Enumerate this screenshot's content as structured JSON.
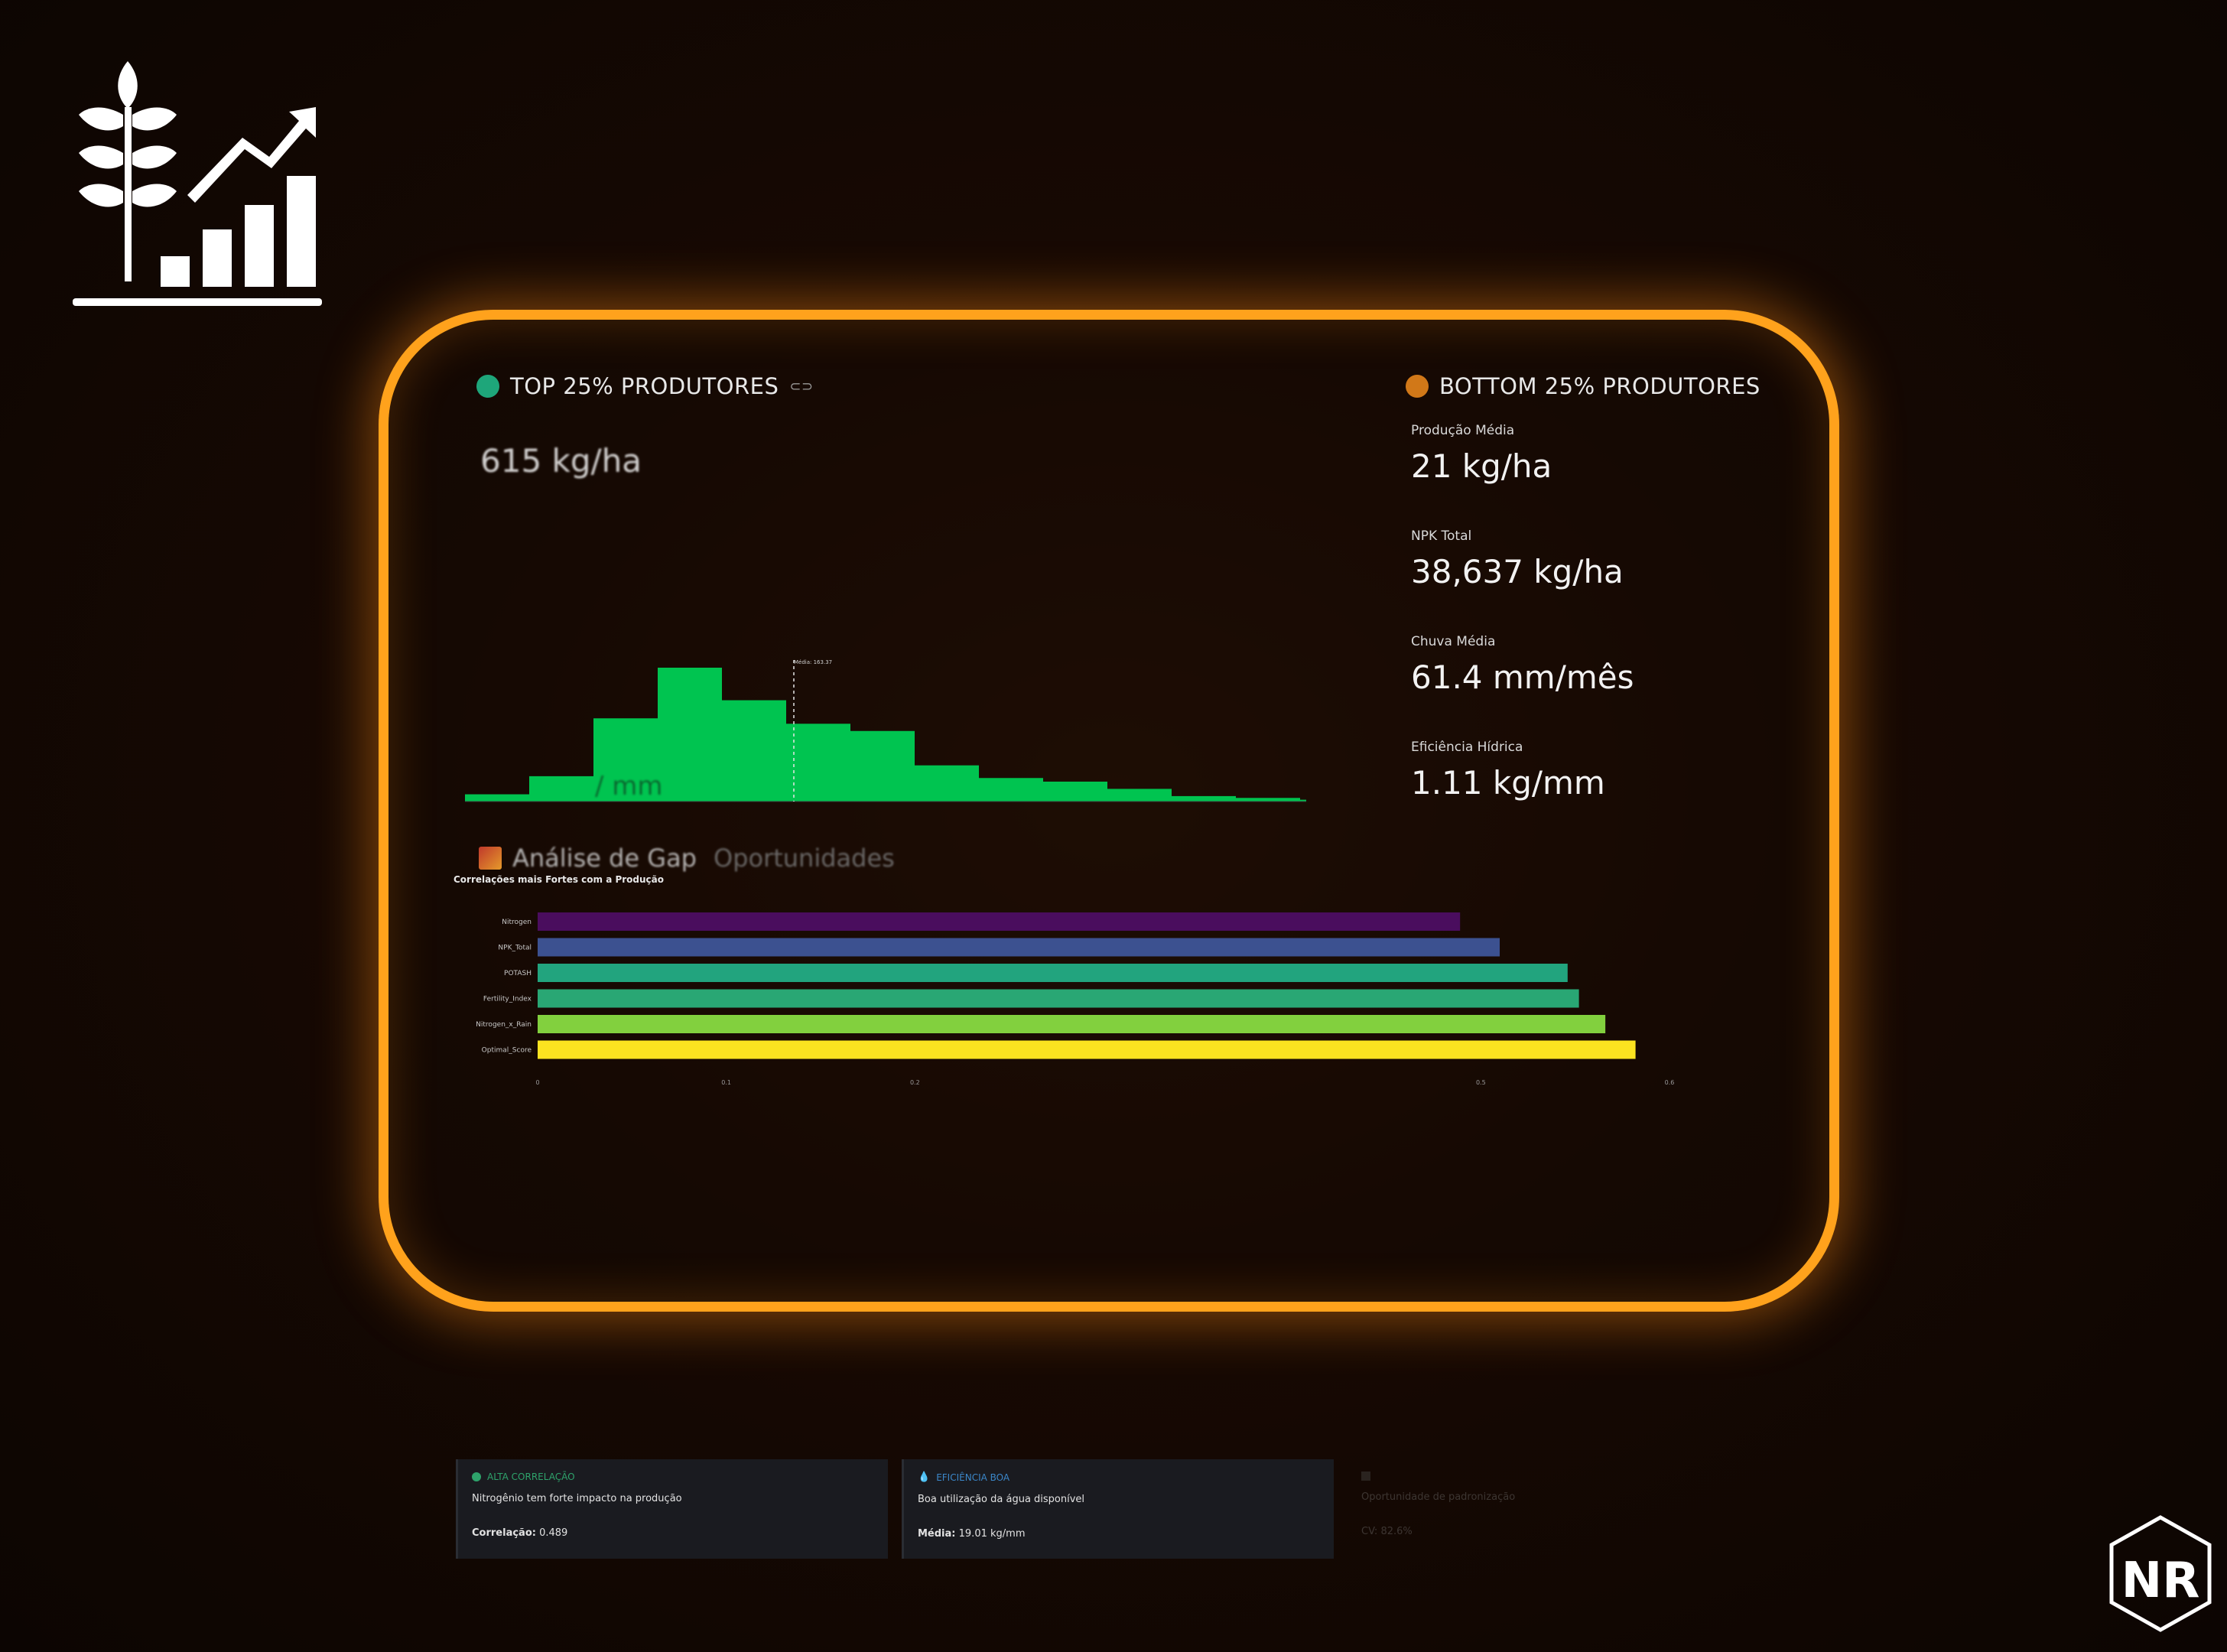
{
  "top": {
    "title": "TOP 25% PRODUTORES",
    "value": "615 kg/ha",
    "dot_color": "#1ea67a"
  },
  "bottom": {
    "title": "BOTTOM 25% PRODUTORES",
    "dot_color": "#d17818",
    "metrics": [
      {
        "label": "Produção Média",
        "value": "21 kg/ha"
      },
      {
        "label": "NPK Total",
        "value": "38,637 kg/ha"
      },
      {
        "label": "Chuva Média",
        "value": "61.4 mm/mês"
      },
      {
        "label": "Eficiência Hídrica",
        "value": "1.11 kg/mm"
      }
    ]
  },
  "section_heading": "Análise de Gap",
  "section_heading_faded": "Oportunidades",
  "corr_title": "Correlações mais Fortes com a Produção",
  "histogram": {
    "chart_data": {
      "type": "bar",
      "values": [
        4,
        14,
        46,
        74,
        56,
        43,
        39,
        20,
        13,
        11,
        7,
        3,
        2,
        1
      ],
      "mean_label": "Média: 163.37",
      "overlay_text": "/ mm",
      "color": "#00c450"
    }
  },
  "chart_data": {
    "type": "bar",
    "orientation": "horizontal",
    "title": "Correlações mais Fortes com a Produção",
    "categories": [
      "Nitrogen",
      "NPK_Total",
      "POTASH",
      "Fertility_Index",
      "Nitrogen_x_Rain",
      "Optimal_Score"
    ],
    "values": [
      0.489,
      0.51,
      0.546,
      0.552,
      0.566,
      0.582
    ],
    "colors": [
      "#4a0d5e",
      "#3c5190",
      "#22a47e",
      "#29a774",
      "#82d03e",
      "#fbe320"
    ],
    "xlim": [
      0,
      0.6
    ],
    "x_ticks": [
      "0",
      "0.1",
      "0.2",
      "0.5",
      "0.6"
    ]
  },
  "cards": [
    {
      "head": "ALTA CORRELAÇÃO",
      "head_color": "#2ea36b",
      "desc": "Nitrogênio tem forte impacto na produção",
      "foot_label": "Correlação:",
      "foot_value": "0.489"
    },
    {
      "head": "EFICIÊNCIA BOA",
      "head_color": "#3b87c9",
      "desc": "Boa utilização da água disponível",
      "foot_label": "Média:",
      "foot_value": "19.01 kg/mm"
    },
    {
      "head": "",
      "head_color": "#555555",
      "desc": "Oportunidade de padronização",
      "foot_label": "CV:",
      "foot_value": "82.6%"
    }
  ]
}
